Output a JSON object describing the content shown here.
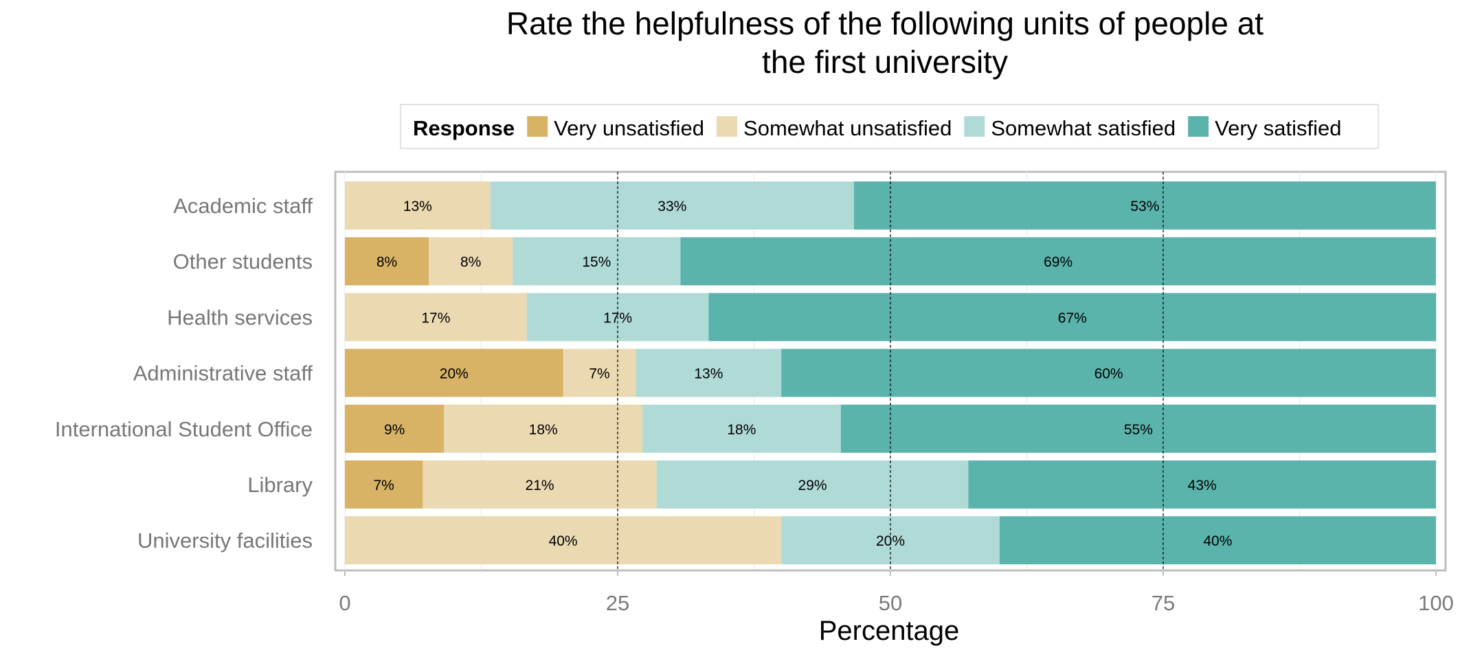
{
  "chart_data": {
    "type": "bar",
    "orientation": "horizontal",
    "stacked": true,
    "title": "Rate the helpfulness of the following units of people at the first university",
    "title_lines": [
      "Rate the helpfulness of the following units of people at",
      "the first university"
    ],
    "xlabel": "Percentage",
    "ylabel": "",
    "xlim": [
      0,
      100
    ],
    "xticks": [
      "0",
      "25",
      "50",
      "75",
      "100"
    ],
    "reference_lines": [
      25,
      50,
      75
    ],
    "legend": {
      "title": "Response",
      "position": "top"
    },
    "categories": [
      "Academic staff",
      "Other students",
      "Health services",
      "Administrative staff",
      "International Student Office",
      "Library",
      "University facilities"
    ],
    "series": [
      {
        "name": "Very unsatisfied",
        "color": "#d8b365",
        "values": [
          0,
          7.69,
          0,
          20,
          9.09,
          7.14,
          0
        ],
        "labels": [
          "",
          "8%",
          "",
          "20%",
          "9%",
          "7%",
          ""
        ]
      },
      {
        "name": "Somewhat unsatisfied",
        "color": "#ebd9b2",
        "values": [
          13.33,
          7.69,
          16.67,
          6.67,
          18.18,
          21.43,
          40
        ],
        "labels": [
          "13%",
          "8%",
          "17%",
          "7%",
          "18%",
          "21%",
          "40%"
        ]
      },
      {
        "name": "Somewhat satisfied",
        "color": "#afdad6",
        "values": [
          33.33,
          15.38,
          16.67,
          13.33,
          18.18,
          28.57,
          20
        ],
        "labels": [
          "33%",
          "15%",
          "17%",
          "13%",
          "18%",
          "29%",
          "20%"
        ]
      },
      {
        "name": "Very satisfied",
        "color": "#5ab4ac",
        "values": [
          53.33,
          69.23,
          66.67,
          60,
          54.55,
          42.86,
          40
        ],
        "labels": [
          "53%",
          "69%",
          "67%",
          "60%",
          "55%",
          "43%",
          "40%"
        ]
      }
    ]
  }
}
